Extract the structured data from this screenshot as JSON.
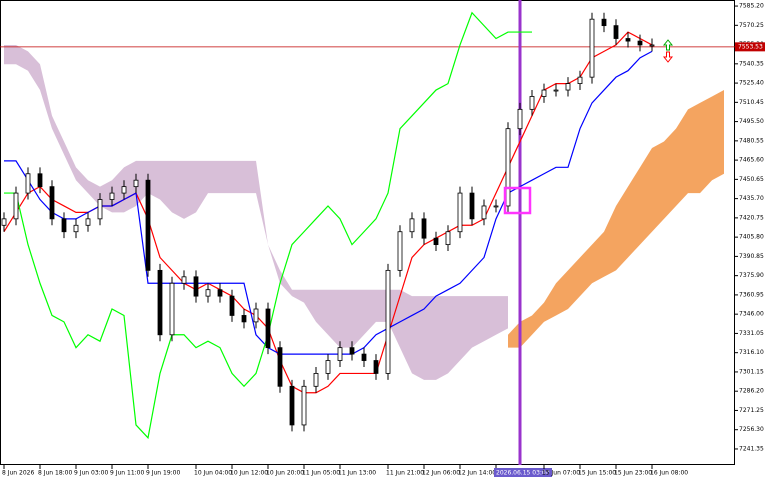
{
  "chart_data": {
    "type": "candlestick",
    "categories": [
      "8 Jun 2026",
      null,
      null,
      "8 Jun 18:00",
      null,
      null,
      "9 Jun 03:00",
      null,
      null,
      "9 Jun 11:00",
      null,
      null,
      "9 Jun 19:00",
      null,
      null,
      null,
      "10 Jun 04:00",
      null,
      null,
      "10 Jun 12:00",
      null,
      null,
      "10 Jun 20:00",
      null,
      null,
      "11 Jun 05:00",
      null,
      null,
      "11 Jun 13:00",
      null,
      null,
      null,
      "11 Jun 21:00",
      null,
      null,
      "12 Jun 06:00",
      null,
      null,
      "12 Jun 14:00",
      null,
      null,
      "2026.06.15 03:00",
      null,
      null,
      null,
      "15 Jun 07:00",
      null,
      null,
      "15 Jun 15:00",
      null,
      null,
      "15 Jun 23:00",
      null,
      null,
      "16 Jun 08:00",
      null,
      null,
      null,
      null,
      null,
      null
    ],
    "highlighted_category": 41,
    "candles": {
      "open": [
        7415,
        7420,
        7440,
        7455,
        7445,
        7420,
        7410,
        7415,
        7420,
        7435,
        7440,
        7445,
        7450,
        7380,
        7330,
        7370,
        7375,
        7360,
        7365,
        7360,
        7345,
        7340,
        7350,
        7320,
        7290,
        7260,
        7290,
        7300,
        7310,
        7320,
        7315,
        7310,
        7300,
        7380,
        7410,
        7420,
        7405,
        7400,
        7410,
        7440,
        7420,
        7430,
        7430,
        7490,
        7505,
        7515,
        7520,
        7520,
        7525,
        7530,
        7575,
        7570,
        7560,
        7558,
        7555,
        null,
        null,
        null,
        null,
        null,
        null
      ],
      "high": [
        7425,
        7445,
        7460,
        7460,
        7450,
        7425,
        7420,
        7425,
        7440,
        7445,
        7450,
        7455,
        7455,
        7385,
        7375,
        7380,
        7380,
        7370,
        7370,
        7365,
        7350,
        7355,
        7355,
        7325,
        7295,
        7295,
        7305,
        7315,
        7325,
        7325,
        7320,
        7315,
        7385,
        7415,
        7425,
        7425,
        7410,
        7415,
        7445,
        7445,
        7435,
        7435,
        7495,
        7510,
        7520,
        7525,
        7525,
        7530,
        7535,
        7580,
        7580,
        7575,
        7565,
        7563,
        7560,
        null,
        null,
        null,
        null,
        null,
        null
      ],
      "low": [
        7410,
        7415,
        7435,
        7440,
        7415,
        7405,
        7405,
        7410,
        7415,
        7430,
        7435,
        7440,
        7375,
        7325,
        7325,
        7365,
        7355,
        7355,
        7355,
        7340,
        7335,
        7335,
        7315,
        7285,
        7255,
        7255,
        7285,
        7295,
        7305,
        7310,
        7305,
        7295,
        7295,
        7375,
        7405,
        7400,
        7395,
        7395,
        7405,
        7415,
        7415,
        7425,
        7425,
        7485,
        7500,
        7510,
        7515,
        7515,
        7520,
        7525,
        7565,
        7555,
        7553,
        7550,
        7550,
        null,
        null,
        null,
        null,
        null,
        null
      ],
      "close": [
        7420,
        7440,
        7455,
        7445,
        7420,
        7410,
        7415,
        7420,
        7435,
        7440,
        7445,
        7450,
        7380,
        7330,
        7370,
        7375,
        7360,
        7365,
        7360,
        7345,
        7340,
        7350,
        7320,
        7290,
        7260,
        7290,
        7300,
        7310,
        7320,
        7315,
        7310,
        7300,
        7380,
        7410,
        7420,
        7405,
        7400,
        7410,
        7440,
        7420,
        7430,
        7430,
        7490,
        7505,
        7515,
        7520,
        7520,
        7525,
        7530,
        7575,
        7570,
        7560,
        7558,
        7555,
        7555,
        null,
        null,
        null,
        null,
        null,
        null
      ],
      "up_color": "#ffffff",
      "down_color": "#000000"
    },
    "series": [
      {
        "color": "#ff0000",
        "values": [
          7410,
          7425,
          7440,
          7445,
          7435,
          7430,
          7425,
          7425,
          7430,
          7430,
          7435,
          7440,
          7420,
          7390,
          7380,
          7370,
          7365,
          7370,
          7365,
          7360,
          7350,
          7345,
          7335,
          7310,
          7290,
          7285,
          7285,
          7290,
          7300,
          7300,
          7300,
          7300,
          7330,
          7360,
          7390,
          7400,
          7405,
          7410,
          7415,
          7415,
          7420,
          7440,
          7460,
          7480,
          7500,
          7520,
          7525,
          7525,
          7530,
          7545,
          7550,
          7555,
          7565,
          7560,
          7555,
          null,
          null,
          null,
          null,
          null,
          null
        ]
      },
      {
        "color": "#0000ff",
        "values": [
          7465,
          7465,
          7450,
          7435,
          7425,
          7420,
          7420,
          7425,
          7430,
          7430,
          7435,
          7440,
          7370,
          7370,
          7370,
          7370,
          7370,
          7370,
          7370,
          7370,
          7370,
          7330,
          7320,
          7315,
          7315,
          7315,
          7315,
          7315,
          7315,
          7315,
          7320,
          7330,
          7335,
          7340,
          7345,
          7350,
          7360,
          7365,
          7370,
          7380,
          7390,
          7420,
          7440,
          7445,
          7450,
          7455,
          7460,
          7460,
          7490,
          7510,
          7520,
          7530,
          7535,
          7545,
          7550,
          null,
          null,
          null,
          null,
          null,
          null
        ]
      },
      {
        "color": "#00ff00",
        "values": [
          7440,
          7440,
          7400,
          7370,
          7345,
          7340,
          7320,
          7330,
          7325,
          7350,
          7345,
          7260,
          7250,
          7300,
          7330,
          7330,
          7320,
          7325,
          7320,
          7300,
          7290,
          7300,
          7330,
          7370,
          7400,
          7410,
          7420,
          7430,
          7420,
          7400,
          7410,
          7420,
          7440,
          7490,
          7500,
          7510,
          7520,
          7525,
          7555,
          7580,
          7570,
          7560,
          7565,
          7565,
          7565,
          null,
          null,
          null,
          null,
          null,
          null,
          null,
          null,
          null,
          null,
          null,
          null,
          null,
          null,
          null,
          null
        ]
      }
    ],
    "clouds": [
      {
        "color": "#d8bfd8",
        "top": [
          7555,
          7555,
          7550,
          7540,
          7500,
          7480,
          7460,
          7450,
          7445,
          7450,
          7460,
          7465,
          7465,
          7465,
          7465,
          7465,
          7465,
          7465,
          7465,
          7465,
          7465,
          7465,
          7400,
          7380,
          7365,
          7365,
          7365,
          7365,
          7365,
          7365,
          7365,
          7365,
          7365,
          7365,
          7360,
          7360,
          7360,
          7360,
          7360,
          7360,
          7360,
          7360,
          7360,
          null,
          null,
          null,
          null,
          null,
          null,
          null,
          null,
          null,
          null,
          null,
          null,
          null,
          null,
          null,
          null,
          null,
          null
        ],
        "bottom": [
          7540,
          7540,
          7535,
          7520,
          7490,
          7470,
          7450,
          7440,
          7430,
          7425,
          7425,
          7430,
          7440,
          7435,
          7425,
          7420,
          7425,
          7440,
          7440,
          7440,
          7440,
          7440,
          7400,
          7370,
          7360,
          7355,
          7340,
          7330,
          7320,
          7320,
          7330,
          7340,
          7340,
          7320,
          7300,
          7295,
          7295,
          7300,
          7310,
          7320,
          7325,
          7330,
          7335,
          null,
          null,
          null,
          null,
          null,
          null,
          null,
          null,
          null,
          null,
          null,
          null,
          null,
          null,
          null,
          null,
          null,
          null
        ]
      },
      {
        "color": "#f4a460",
        "top": [
          null,
          null,
          null,
          null,
          null,
          null,
          null,
          null,
          null,
          null,
          null,
          null,
          null,
          null,
          null,
          null,
          null,
          null,
          null,
          null,
          null,
          null,
          null,
          null,
          null,
          null,
          null,
          null,
          null,
          null,
          null,
          null,
          null,
          null,
          null,
          null,
          null,
          null,
          null,
          null,
          null,
          null,
          7330,
          7340,
          7345,
          7355,
          7370,
          7380,
          7390,
          7400,
          7410,
          7430,
          7445,
          7460,
          7475,
          7480,
          7490,
          7505,
          7510,
          7515,
          7520
        ],
        "bottom": [
          null,
          null,
          null,
          null,
          null,
          null,
          null,
          null,
          null,
          null,
          null,
          null,
          null,
          null,
          null,
          null,
          null,
          null,
          null,
          null,
          null,
          null,
          null,
          null,
          null,
          null,
          null,
          null,
          null,
          null,
          null,
          null,
          null,
          null,
          null,
          null,
          null,
          null,
          null,
          null,
          null,
          null,
          7320,
          7320,
          7330,
          7340,
          7345,
          7350,
          7360,
          7370,
          7375,
          7380,
          7390,
          7400,
          7410,
          7420,
          7430,
          7440,
          7440,
          7450,
          7455
        ]
      }
    ],
    "current_price": {
      "value": 7553.53,
      "label": "7553.53",
      "color": "#c00000"
    },
    "ylim": [
      7228.9,
      7589.9
    ],
    "yticks": [
      {
        "value": 7585.2,
        "label": "7585.20"
      },
      {
        "value": 7570.25,
        "label": "7570.25"
      },
      {
        "value": 7555.3,
        "label": "7555.30"
      },
      {
        "value": 7540.35,
        "label": "7540.35"
      },
      {
        "value": 7525.4,
        "label": "7525.40"
      },
      {
        "value": 7510.45,
        "label": "7510.45"
      },
      {
        "value": 7495.5,
        "label": "7495.50"
      },
      {
        "value": 7480.55,
        "label": "7480.55"
      },
      {
        "value": 7465.6,
        "label": "7465.60"
      },
      {
        "value": 7450.65,
        "label": "7450.65"
      },
      {
        "value": 7435.7,
        "label": "7435.70"
      },
      {
        "value": 7420.75,
        "label": "7420.75"
      },
      {
        "value": 7405.8,
        "label": "7405.80"
      },
      {
        "value": 7390.85,
        "label": "7390.85"
      },
      {
        "value": 7375.9,
        "label": "7375.90"
      },
      {
        "value": 7360.95,
        "label": "7360.95"
      },
      {
        "value": 7346,
        "label": "7346.00"
      },
      {
        "value": 7331.05,
        "label": "7331.05"
      },
      {
        "value": 7316.1,
        "label": "7316.10"
      },
      {
        "value": 7301.15,
        "label": "7301.15"
      },
      {
        "value": 7286.2,
        "label": "7286.20"
      },
      {
        "value": 7271.25,
        "label": "7271.25"
      },
      {
        "value": 7256.3,
        "label": "7256.30"
      },
      {
        "value": 7241.35,
        "label": "7241.35"
      }
    ]
  }
}
